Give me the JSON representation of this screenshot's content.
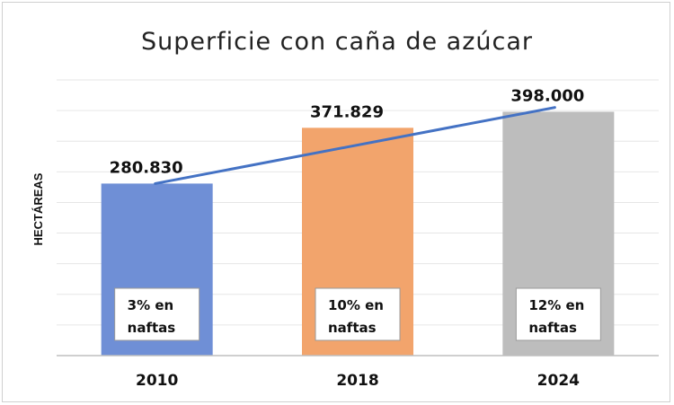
{
  "chart_data": {
    "type": "bar",
    "title": "Superficie con caña de azúcar",
    "ylabel": "HECTÁREAS",
    "xlabel": "",
    "categories": [
      "2010",
      "2018",
      "2024"
    ],
    "values": [
      280830,
      371829,
      398000
    ],
    "value_labels": [
      "280.830",
      "371.829",
      "398.000"
    ],
    "bar_colors": [
      "#6f8fd6",
      "#f2a46c",
      "#bdbdbd"
    ],
    "annotations": [
      {
        "line1": "3% en",
        "line2": "naftas"
      },
      {
        "line1": "10% en",
        "line2": "naftas"
      },
      {
        "line1": "12% en",
        "line2": "naftas"
      }
    ],
    "trendline": {
      "color": "#4472c4",
      "from": 280830,
      "to": 405000
    },
    "ylim": [
      0,
      450000
    ],
    "grid": true,
    "legend": "none"
  }
}
